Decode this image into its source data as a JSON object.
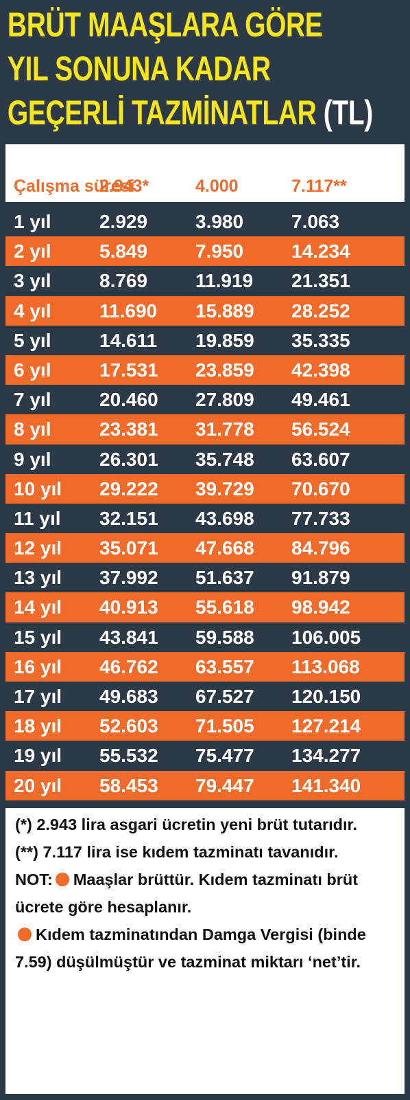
{
  "title": {
    "lines": [
      "BRÜT MAAŞLARA GÖRE",
      "YIL SONUNA KADAR",
      "GEÇERLİ TAZMİNATLAR"
    ],
    "unit": "(TL)"
  },
  "table": {
    "header": [
      "Çalışma süresi",
      "2.943*",
      "4.000",
      "7.117**"
    ],
    "rows": [
      [
        "1 yıl",
        "2.929",
        "3.980",
        "7.063"
      ],
      [
        "2 yıl",
        "5.849",
        "7.950",
        "14.234"
      ],
      [
        "3 yıl",
        "8.769",
        "11.919",
        "21.351"
      ],
      [
        "4 yıl",
        "11.690",
        "15.889",
        "28.252"
      ],
      [
        "5 yıl",
        "14.611",
        "19.859",
        "35.335"
      ],
      [
        "6 yıl",
        "17.531",
        "23.859",
        "42.398"
      ],
      [
        "7 yıl",
        "20.460",
        "27.809",
        "49.461"
      ],
      [
        "8 yıl",
        "23.381",
        "31.778",
        "56.524"
      ],
      [
        "9 yıl",
        "26.301",
        "35.748",
        "63.607"
      ],
      [
        "10 yıl",
        "29.222",
        "39.729",
        "70.670"
      ],
      [
        "11 yıl",
        "32.151",
        "43.698",
        "77.733"
      ],
      [
        "12 yıl",
        "35.071",
        "47.668",
        "84.796"
      ],
      [
        "13 yıl",
        "37.992",
        "51.637",
        "91.879"
      ],
      [
        "14 yıl",
        "40.913",
        "55.618",
        "98.942"
      ],
      [
        "15 yıl",
        "43.841",
        "59.588",
        "106.005"
      ],
      [
        "16 yıl",
        "46.762",
        "63.557",
        "113.068"
      ],
      [
        "17 yıl",
        "49.683",
        "67.527",
        "120.150"
      ],
      [
        "18 yıl",
        "52.603",
        "71.505",
        "127.214"
      ],
      [
        "19 yıl",
        "55.532",
        "75.477",
        "134.277"
      ],
      [
        "20 yıl",
        "58.453",
        "79.447",
        "141.340"
      ]
    ]
  },
  "notes": {
    "n1": "(*) 2.943 lira asgari ücretin yeni brüt tutarıdır.",
    "n2": "(**) 7.117 lira ise kıdem tazminatı tavanıdır.",
    "not_label": "NOT:",
    "n3": "Maaşlar brüttür. Kıdem tazminatı brüt ücrete göre hesaplanır.",
    "n4": "Kıdem tazminatından Damga Vergisi (binde 7.59) düşülmüştür ve tazminat miktarı ‘net’tir."
  }
}
